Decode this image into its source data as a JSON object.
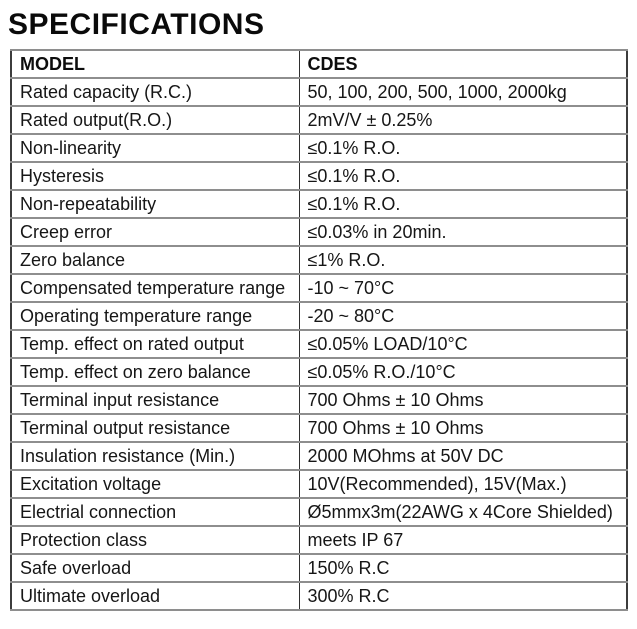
{
  "page_title": "SPECIFICATIONS",
  "table": {
    "headers": [
      "MODEL",
      "CDES"
    ],
    "rows": [
      [
        "Rated capacity (R.C.)",
        "50, 100, 200, 500, 1000, 2000kg"
      ],
      [
        "Rated output(R.O.)",
        "2mV/V ± 0.25%"
      ],
      [
        "Non-linearity",
        "≤0.1% R.O."
      ],
      [
        "Hysteresis",
        "≤0.1% R.O."
      ],
      [
        "Non-repeatability",
        "≤0.1% R.O."
      ],
      [
        "Creep error",
        "≤0.03% in 20min."
      ],
      [
        "Zero balance",
        "≤1% R.O."
      ],
      [
        "Compensated temperature range",
        "-10 ~ 70°C"
      ],
      [
        "Operating temperature range",
        "-20 ~ 80°C"
      ],
      [
        "Temp. effect on rated output",
        "≤0.05% LOAD/10°C"
      ],
      [
        "Temp. effect on zero balance",
        "≤0.05% R.O./10°C"
      ],
      [
        "Terminal input resistance",
        "700 Ohms ± 10 Ohms"
      ],
      [
        "Terminal output resistance",
        "700 Ohms ± 10 Ohms"
      ],
      [
        "Insulation resistance (Min.)",
        "2000 MOhms at 50V DC"
      ],
      [
        "Excitation voltage",
        "10V(Recommended), 15V(Max.)"
      ],
      [
        "Electrial connection",
        "Ø5mmx3m(22AWG x 4Core Shielded)"
      ],
      [
        "Protection class",
        "meets IP 67"
      ],
      [
        "Safe overload",
        "150% R.C"
      ],
      [
        "Ultimate overload",
        "300% R.C"
      ]
    ]
  },
  "colors": {
    "text": "#151515",
    "outer_border": "#3c3c3c",
    "row_divider": "#8e8e8e",
    "column_divider": "#2f2f2f",
    "background": "#ffffff"
  }
}
